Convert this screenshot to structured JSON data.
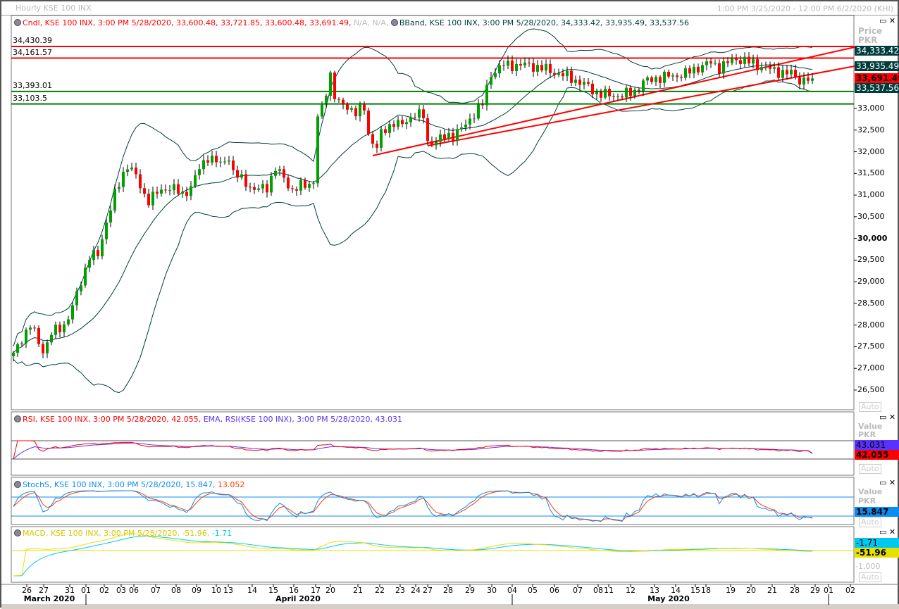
{
  "window": {
    "title": "Hourly KSE 100 INX",
    "range": "1:00 PM 3/25/2020 - 12:00 PM 6/2/2020 (KHI)"
  },
  "legends": {
    "candle": {
      "text": "Cndl, KSE 100 INX, 3:00 PM 5/28/2020, 33,600.48, 33,721.85, 33,600.48, 33,691.49,",
      "na": "N/A, N/A,",
      "color": "#ff0000"
    },
    "bband": {
      "text": "BBand, KSE 100 INX, 3:00 PM 5/28/2020, 34,333.42, 33,935.49, 33,537.56",
      "color": "#003c3c"
    },
    "rsi": {
      "text": "RSI, KSE 100 INX, 3:00 PM 5/28/2020, 42.055,",
      "color": "#ff0000"
    },
    "ema": {
      "text": "EMA, RSI(KSE 100 INX), 3:00 PM 5/28/2020, 43.031",
      "color": "#5a32ff"
    },
    "stoch": {
      "text": "StochS, KSE 100 INX, 3:00 PM 5/28/2020, 15.847,",
      "second": "13.052",
      "color": "#0a8cf0",
      "color2": "#ff3c00"
    },
    "macd": {
      "text": "MACD, KSE 100 INX, 3:00 PM 5/28/2020, -51.96,",
      "second": "-1.71",
      "color": "#d4c800",
      "color2": "#00c8f0"
    }
  },
  "price_axis": {
    "title": "Price",
    "unit": "PKR",
    "ticks": [
      "33,000",
      "32,500",
      "32,000",
      "31,500",
      "31,000",
      "30,500",
      "30,000",
      "29,500",
      "29,000",
      "28,500",
      "28,000",
      "27,500",
      "27,000",
      "26,500"
    ],
    "boxes": [
      {
        "label": "34,333.42",
        "color": "#003c3c"
      },
      {
        "label": "33,935.49",
        "color": "#003c3c"
      },
      {
        "label": "33,691.49",
        "color": "#ff0000"
      },
      {
        "label": "33,537.56",
        "color": "#003c3c"
      }
    ],
    "auto": "Auto"
  },
  "horizontal_lines": [
    {
      "label": "34,430.39",
      "value": 34430.39,
      "color": "#ff0000"
    },
    {
      "label": "34,161.57",
      "value": 34161.57,
      "color": "#ff0000"
    },
    {
      "label": "33,393.01",
      "value": 33393.01,
      "color": "#008000"
    },
    {
      "label": "33,103.5",
      "value": 33103.5,
      "color": "#008000"
    }
  ],
  "trend_lines": [
    {
      "from": [
        85,
        31911
      ],
      "to": [
        199,
        34414
      ],
      "color": "#ff0000"
    },
    {
      "from": [
        98,
        32139
      ],
      "to": [
        199,
        33975
      ],
      "color": "#ff0000"
    }
  ],
  "rsi_axis": {
    "title": "Value",
    "unit": "PKR",
    "boxes": [
      {
        "label": "43.031",
        "color": "#5a32ff"
      },
      {
        "label": "42.055",
        "color": "#ff0000"
      }
    ],
    "auto": "Auto"
  },
  "stoch_axis": {
    "title": "Value",
    "unit": "PKR",
    "boxes": [
      {
        "label": "15.847",
        "color": "#0a8cf0"
      }
    ],
    "auto": "Auto"
  },
  "macd_axis": {
    "boxes": [
      {
        "label": "-1.71",
        "color": "#00c8f0"
      },
      {
        "label": "-51.96",
        "color": "#e6e000"
      }
    ],
    "tick": "-1,000",
    "auto": "Auto"
  },
  "x_axis": {
    "ticks": [
      "26",
      "27",
      "31",
      "01",
      "02",
      "03",
      "06",
      "07",
      "08",
      "09",
      "10",
      "13",
      "14",
      "15",
      "16",
      "17",
      "20",
      "21",
      "22",
      "23",
      "24",
      "27",
      "28",
      "29",
      "30",
      "04",
      "05",
      "06",
      "07",
      "08",
      "11",
      "12",
      "13",
      "14",
      "15",
      "18",
      "19",
      "20",
      "21",
      "28",
      "29",
      "01",
      "02"
    ],
    "months": [
      "March 2020",
      "April 2020",
      "May 2020"
    ]
  },
  "chart_data": {
    "type": "candlestick",
    "bars": 190,
    "close_keypoints": [
      [
        0,
        27300
      ],
      [
        2,
        27700
      ],
      [
        4,
        28000
      ],
      [
        7,
        27400
      ],
      [
        9,
        27800
      ],
      [
        12,
        28000
      ],
      [
        14,
        28400
      ],
      [
        16,
        29000
      ],
      [
        18,
        29600
      ],
      [
        20,
        29600
      ],
      [
        22,
        30400
      ],
      [
        24,
        31000
      ],
      [
        26,
        31500
      ],
      [
        27,
        31700
      ],
      [
        28,
        31600
      ],
      [
        31,
        31000
      ],
      [
        32,
        30900
      ],
      [
        35,
        31100
      ],
      [
        37,
        31200
      ],
      [
        40,
        31000
      ],
      [
        42,
        31200
      ],
      [
        44,
        31600
      ],
      [
        46,
        31900
      ],
      [
        49,
        31700
      ],
      [
        51,
        31900
      ],
      [
        52,
        31500
      ],
      [
        55,
        31300
      ],
      [
        57,
        31100
      ],
      [
        60,
        31200
      ],
      [
        62,
        31600
      ],
      [
        64,
        31400
      ],
      [
        66,
        31100
      ],
      [
        69,
        31250
      ],
      [
        71,
        31300
      ],
      [
        72,
        32800
      ],
      [
        73,
        33000
      ],
      [
        75,
        33800
      ],
      [
        76,
        33300
      ],
      [
        77,
        33100
      ],
      [
        80,
        33000
      ],
      [
        81,
        32900
      ],
      [
        83,
        33000
      ],
      [
        84,
        32400
      ],
      [
        86,
        32100
      ],
      [
        87,
        32400
      ],
      [
        90,
        32700
      ],
      [
        92,
        32600
      ],
      [
        95,
        32900
      ],
      [
        97,
        32800
      ],
      [
        98,
        32200
      ],
      [
        101,
        32300
      ],
      [
        104,
        32400
      ],
      [
        107,
        32600
      ],
      [
        109,
        32900
      ],
      [
        111,
        33100
      ],
      [
        113,
        33800
      ],
      [
        116,
        34000
      ],
      [
        119,
        34000
      ],
      [
        122,
        34000
      ],
      [
        126,
        33900
      ],
      [
        129,
        33800
      ],
      [
        132,
        33700
      ],
      [
        136,
        33500
      ],
      [
        138,
        33350
      ],
      [
        141,
        33300
      ],
      [
        144,
        33300
      ],
      [
        147,
        33400
      ],
      [
        149,
        33600
      ],
      [
        152,
        33700
      ],
      [
        156,
        33750
      ],
      [
        159,
        33800
      ],
      [
        162,
        33950
      ],
      [
        165,
        34050
      ],
      [
        167,
        33950
      ],
      [
        171,
        34150
      ],
      [
        173,
        34100
      ],
      [
        176,
        34000
      ],
      [
        179,
        33900
      ],
      [
        181,
        33850
      ],
      [
        184,
        33800
      ],
      [
        186,
        33650
      ],
      [
        189,
        33691.49
      ]
    ],
    "up_color": "#00a000",
    "down_color": "#ff0000"
  }
}
